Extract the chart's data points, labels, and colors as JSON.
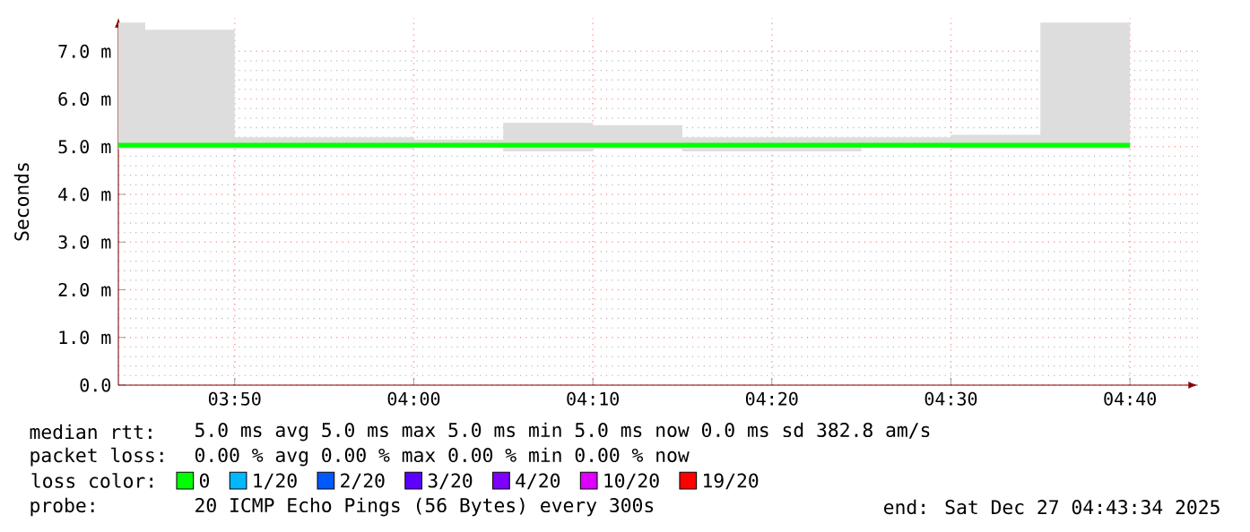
{
  "chart_data": {
    "type": "step",
    "ylabel": "Seconds",
    "x": [
      3.725,
      3.75,
      3.8333,
      3.9167,
      4.0,
      4.0833,
      4.1667,
      4.25,
      4.3333,
      4.4167,
      4.5,
      4.5833,
      4.6667
    ],
    "series": [
      {
        "name": "0",
        "color": "#00ff00",
        "values": [
          5.03,
          5.03,
          5.03,
          5.03,
          5.03,
          5.03,
          5.03,
          5.03,
          5.03,
          5.03,
          5.03,
          5.03,
          5.03
        ],
        "lower": [
          4.95,
          4.95,
          4.95,
          4.95,
          5.0,
          4.9,
          4.95,
          4.9,
          4.9,
          5.0,
          4.95,
          4.95,
          4.95
        ],
        "upper": [
          7.6,
          7.45,
          5.2,
          5.2,
          5.15,
          5.5,
          5.45,
          5.2,
          5.2,
          5.2,
          5.25,
          7.6,
          7.6
        ]
      },
      {
        "name": "1/20",
        "color": "#00b8ff",
        "values": [
          null,
          null,
          null,
          null,
          null,
          null,
          null,
          null,
          null,
          null,
          null,
          null,
          null
        ]
      },
      {
        "name": "2/20",
        "color": "#0059ff",
        "values": [
          null,
          null,
          null,
          null,
          null,
          null,
          null,
          null,
          null,
          null,
          null,
          null,
          null
        ]
      },
      {
        "name": "3/20",
        "color": "#5e00ff",
        "values": [
          null,
          null,
          null,
          null,
          null,
          null,
          null,
          null,
          null,
          null,
          null,
          null,
          null
        ]
      },
      {
        "name": "4/20",
        "color": "#7e00ff",
        "values": [
          null,
          null,
          null,
          null,
          null,
          null,
          null,
          null,
          null,
          null,
          null,
          null,
          null
        ]
      },
      {
        "name": "10/20",
        "color": "#dd00ff",
        "values": [
          null,
          null,
          null,
          null,
          null,
          null,
          null,
          null,
          null,
          null,
          null,
          null,
          null
        ]
      },
      {
        "name": "19/20",
        "color": "#ff0000",
        "values": [
          null,
          null,
          null,
          null,
          null,
          null,
          null,
          null,
          null,
          null,
          null,
          null,
          null
        ]
      }
    ],
    "xlim": [
      3.725,
      4.73
    ],
    "xticks": [
      {
        "value": 3.8333,
        "label": "03:50"
      },
      {
        "value": 4.0,
        "label": "04:00"
      },
      {
        "value": 4.1667,
        "label": "04:10"
      },
      {
        "value": 4.3333,
        "label": "04:20"
      },
      {
        "value": 4.5,
        "label": "04:30"
      },
      {
        "value": 4.6667,
        "label": "04:40"
      }
    ],
    "ylim": [
      0,
      7.7
    ],
    "yticks": [
      {
        "value": 0,
        "label": "0.0"
      },
      {
        "value": 1,
        "label": "1.0 m"
      },
      {
        "value": 2,
        "label": "2.0 m"
      },
      {
        "value": 3,
        "label": "3.0 m"
      },
      {
        "value": 4,
        "label": "4.0 m"
      },
      {
        "value": 5,
        "label": "5.0 m"
      },
      {
        "value": 6,
        "label": "6.0 m"
      },
      {
        "value": 7,
        "label": "7.0 m"
      }
    ],
    "grid": true,
    "legend": "bottom left",
    "legend_title": "loss color:",
    "annotations": [
      "median rtt:",
      "5.0 ms avg 5.0 ms max 5.0 ms min 5.0 ms now 0.0 ms sd 382.8 am/s",
      "packet loss:",
      "0.00 % avg 0.00 % max 0.00 % min 0.00 % now",
      "probe:",
      "20 ICMP Echo Pings (56 Bytes) every 300s",
      "end: Sat Dec 27 04:43:34 2025"
    ]
  }
}
